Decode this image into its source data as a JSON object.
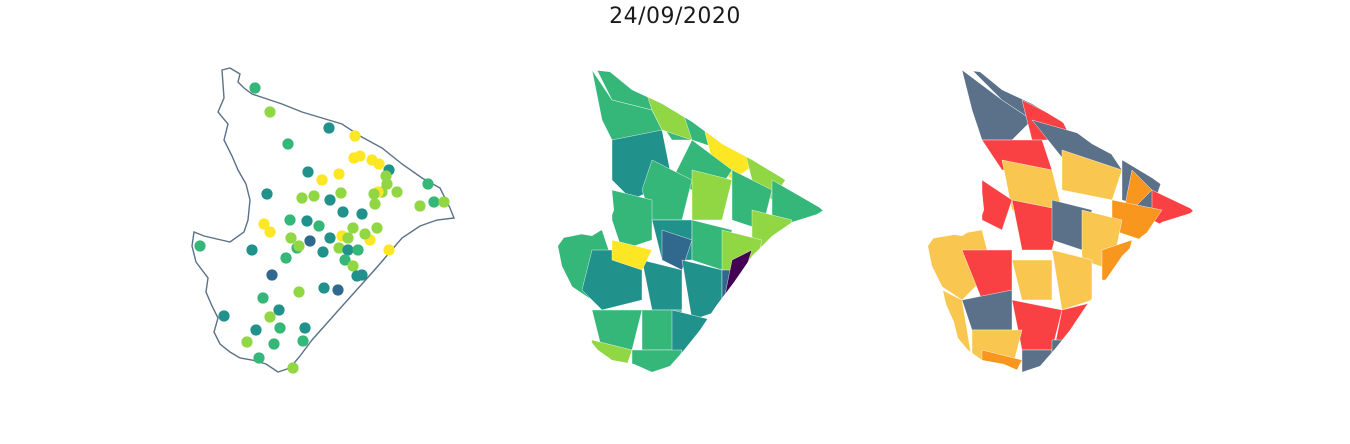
{
  "title": "24/09/2020",
  "colors": {
    "viridis": [
      "#440154",
      "#31688e",
      "#21918c",
      "#35b779",
      "#90d743",
      "#fde725"
    ],
    "outline": "#5a7188",
    "categories": {
      "gray": "#5b7089",
      "red": "#f94144",
      "yellow": "#f9c74f",
      "orange": "#f8961e"
    }
  }
}
